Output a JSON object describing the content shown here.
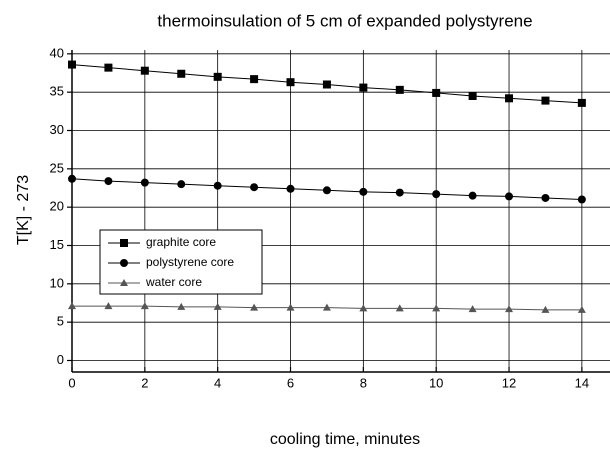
{
  "chart_data": {
    "type": "line",
    "title": "thermoinsulation of 5 cm of expanded polystyrene",
    "x_label": "cooling time, minutes",
    "y_label": "T[K] - 273",
    "x": [
      0,
      1,
      2,
      3,
      4,
      5,
      6,
      7,
      8,
      9,
      10,
      11,
      12,
      13,
      14
    ],
    "series": [
      {
        "name": "graphite core",
        "color": "#000000",
        "marker": "square",
        "values": [
          38.6,
          38.2,
          37.8,
          37.4,
          37.0,
          36.7,
          36.3,
          36.0,
          35.6,
          35.3,
          34.9,
          34.5,
          34.2,
          33.9,
          33.6
        ]
      },
      {
        "name": "polystyrene core",
        "color": "#000000",
        "marker": "circle",
        "values": [
          23.7,
          23.4,
          23.2,
          23.0,
          22.8,
          22.6,
          22.4,
          22.2,
          22.0,
          21.9,
          21.7,
          21.5,
          21.4,
          21.2,
          21.0
        ]
      },
      {
        "name": "water core",
        "color": "#555555",
        "marker": "triangle",
        "values": [
          7.1,
          7.1,
          7.1,
          7.0,
          7.0,
          6.9,
          6.9,
          6.9,
          6.8,
          6.8,
          6.8,
          6.7,
          6.7,
          6.6,
          6.6
        ]
      }
    ],
    "xlim": [
      0,
      14.8
    ],
    "ylim": [
      -1.5,
      40.5
    ],
    "xticks": [
      0,
      2,
      4,
      6,
      8,
      10,
      12,
      14
    ],
    "yticks": [
      0,
      5,
      10,
      15,
      20,
      25,
      30,
      35,
      40
    ],
    "grid": true,
    "legend": "left"
  }
}
